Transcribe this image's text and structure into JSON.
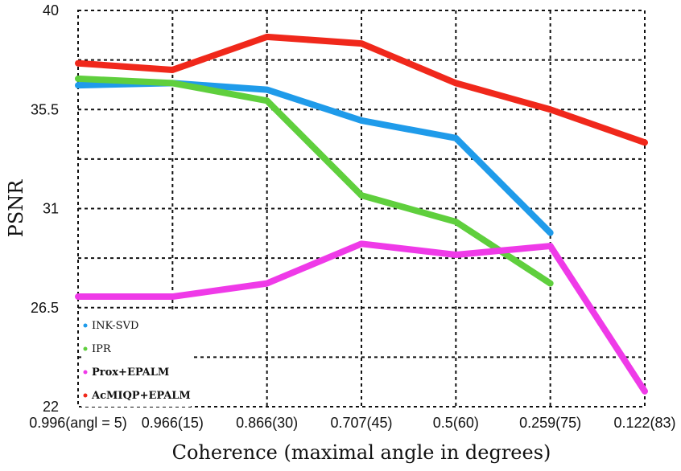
{
  "chart_data": {
    "type": "line",
    "title": "",
    "xlabel": "Coherence (maximal angle in degrees)",
    "ylabel": "PSNR",
    "categories": [
      "0.996(angl = 5)",
      "0.966(15)",
      "0.866(30)",
      "0.707(45)",
      "0.5(60)",
      "0.259(75)",
      "0.122(83)"
    ],
    "yticks": [
      22,
      26.5,
      31,
      35.5,
      40
    ],
    "ytick_labels": [
      "22",
      "26.5",
      "31",
      "35.5",
      "40"
    ],
    "ylim": [
      22,
      40
    ],
    "grid": true,
    "legend_position": "bottom-left",
    "series": [
      {
        "name": "INK-SVD",
        "color": "#1f9bea",
        "values": [
          36.6,
          36.7,
          36.4,
          35.0,
          34.2,
          29.9,
          null
        ]
      },
      {
        "name": "IPR",
        "color": "#5fcf3d",
        "values": [
          36.9,
          36.7,
          35.9,
          31.6,
          30.4,
          27.6,
          null
        ]
      },
      {
        "name": "Prox+EPALM",
        "color": "#ef3ae8",
        "values": [
          27.0,
          27.0,
          27.6,
          29.4,
          28.9,
          29.3,
          22.7
        ]
      },
      {
        "name": "AcMIQP+EPALM",
        "color": "#f0281b",
        "values": [
          37.6,
          37.3,
          38.8,
          38.5,
          36.7,
          35.5,
          34.0
        ]
      }
    ]
  }
}
